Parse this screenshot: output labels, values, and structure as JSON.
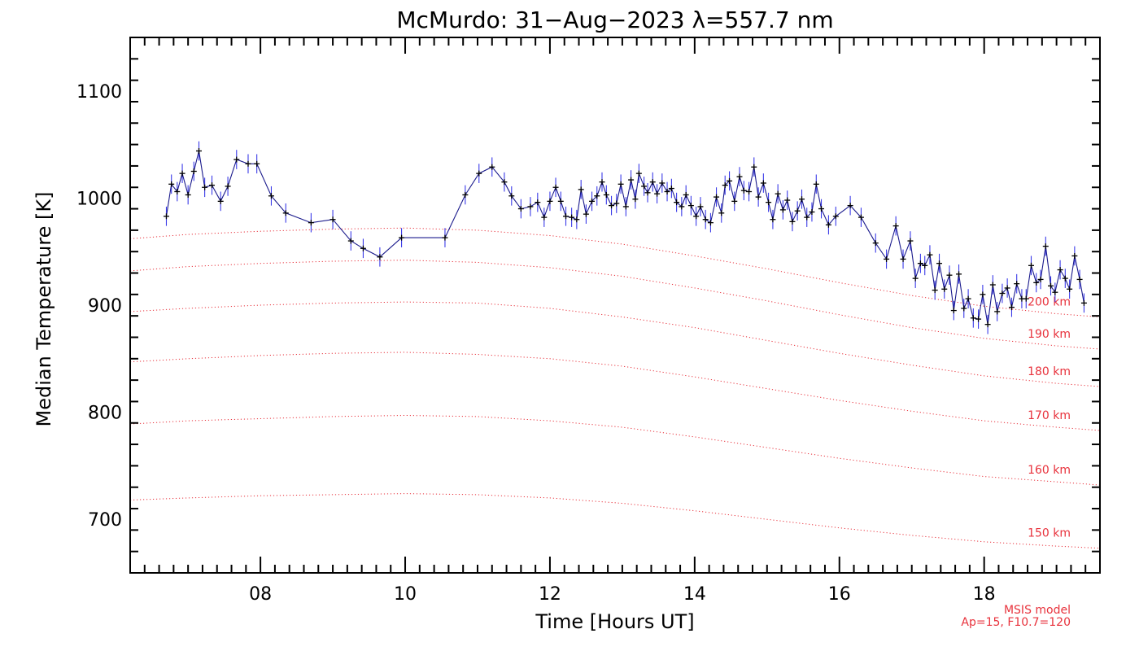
{
  "chart_data": {
    "type": "line",
    "title": "McMurdo: 31−Aug−2023 λ=557.7 nm",
    "xlabel": "Time [Hours UT]",
    "ylabel": "Median Temperature [K]",
    "xlim": [
      6.2,
      19.6
    ],
    "ylim": [
      650,
      1150
    ],
    "x_ticks": [
      8,
      10,
      12,
      14,
      16,
      18
    ],
    "x_tick_labels": [
      "08",
      "10",
      "12",
      "14",
      "16",
      "18"
    ],
    "y_ticks": [
      700,
      800,
      900,
      1000,
      1100
    ],
    "y_tick_labels": [
      "700",
      "800",
      "900",
      "1000",
      "1100"
    ],
    "grid": false,
    "colors": {
      "series": "#1a1a8c",
      "error_bars": "#3a3ae8",
      "markers": "#000000",
      "model": "#e8323c"
    },
    "series": [
      {
        "type": "line_errorbar",
        "points": [
          [
            6.7,
            983,
            9
          ],
          [
            6.77,
            1013,
            9
          ],
          [
            6.85,
            1006,
            9
          ],
          [
            6.92,
            1023,
            9
          ],
          [
            7.0,
            1003,
            9
          ],
          [
            7.08,
            1025,
            9
          ],
          [
            7.15,
            1044,
            9
          ],
          [
            7.23,
            1010,
            9
          ],
          [
            7.33,
            1012,
            9
          ],
          [
            7.45,
            997,
            9
          ],
          [
            7.55,
            1011,
            9
          ],
          [
            7.67,
            1036,
            9
          ],
          [
            7.83,
            1032,
            9
          ],
          [
            7.95,
            1032,
            9
          ],
          [
            8.15,
            1002,
            9
          ],
          [
            8.35,
            986,
            9
          ],
          [
            8.7,
            977,
            9
          ],
          [
            9.0,
            980,
            9
          ],
          [
            9.25,
            960,
            9
          ],
          [
            9.42,
            953,
            9
          ],
          [
            9.65,
            945,
            9
          ],
          [
            9.95,
            963,
            9
          ],
          [
            10.55,
            963,
            9
          ],
          [
            10.83,
            1003,
            9
          ],
          [
            11.02,
            1023,
            9
          ],
          [
            11.2,
            1029,
            9
          ],
          [
            11.37,
            1015,
            9
          ],
          [
            11.47,
            1002,
            9
          ],
          [
            11.6,
            990,
            9
          ],
          [
            11.73,
            992,
            9
          ],
          [
            11.83,
            996,
            9
          ],
          [
            11.92,
            982,
            9
          ],
          [
            12.0,
            997,
            9
          ],
          [
            12.08,
            1010,
            9
          ],
          [
            12.15,
            997,
            9
          ],
          [
            12.22,
            983,
            9
          ],
          [
            12.3,
            982,
            9
          ],
          [
            12.37,
            980,
            9
          ],
          [
            12.43,
            1008,
            9
          ],
          [
            12.5,
            985,
            9
          ],
          [
            12.58,
            997,
            9
          ],
          [
            12.65,
            1002,
            9
          ],
          [
            12.72,
            1015,
            9
          ],
          [
            12.78,
            1003,
            9
          ],
          [
            12.85,
            993,
            9
          ],
          [
            12.92,
            995,
            9
          ],
          [
            12.98,
            1013,
            9
          ],
          [
            13.05,
            992,
            9
          ],
          [
            13.12,
            1017,
            9
          ],
          [
            13.18,
            999,
            9
          ],
          [
            13.23,
            1023,
            9
          ],
          [
            13.3,
            1011,
            9
          ],
          [
            13.35,
            1005,
            9
          ],
          [
            13.42,
            1015,
            9
          ],
          [
            13.48,
            1004,
            9
          ],
          [
            13.55,
            1014,
            9
          ],
          [
            13.62,
            1006,
            9
          ],
          [
            13.68,
            1009,
            9
          ],
          [
            13.75,
            996,
            9
          ],
          [
            13.82,
            992,
            9
          ],
          [
            13.88,
            1003,
            9
          ],
          [
            13.95,
            993,
            9
          ],
          [
            14.02,
            983,
            9
          ],
          [
            14.08,
            992,
            9
          ],
          [
            14.15,
            980,
            9
          ],
          [
            14.22,
            977,
            9
          ],
          [
            14.3,
            1001,
            9
          ],
          [
            14.37,
            986,
            9
          ],
          [
            14.42,
            1012,
            9
          ],
          [
            14.48,
            1016,
            9
          ],
          [
            14.55,
            997,
            9
          ],
          [
            14.62,
            1020,
            9
          ],
          [
            14.68,
            1007,
            9
          ],
          [
            14.75,
            1006,
            9
          ],
          [
            14.82,
            1029,
            9
          ],
          [
            14.88,
            1001,
            9
          ],
          [
            14.95,
            1014,
            9
          ],
          [
            15.02,
            996,
            9
          ],
          [
            15.08,
            980,
            9
          ],
          [
            15.15,
            1004,
            9
          ],
          [
            15.22,
            989,
            9
          ],
          [
            15.28,
            998,
            9
          ],
          [
            15.35,
            978,
            9
          ],
          [
            15.42,
            988,
            9
          ],
          [
            15.48,
            999,
            9
          ],
          [
            15.55,
            982,
            9
          ],
          [
            15.62,
            987,
            9
          ],
          [
            15.68,
            1013,
            9
          ],
          [
            15.75,
            990,
            9
          ],
          [
            15.85,
            975,
            9
          ],
          [
            15.95,
            983,
            9
          ],
          [
            16.15,
            993,
            9
          ],
          [
            16.3,
            982,
            9
          ],
          [
            16.5,
            958,
            9
          ],
          [
            16.65,
            943,
            9
          ],
          [
            16.78,
            974,
            9
          ],
          [
            16.88,
            943,
            9
          ],
          [
            16.98,
            960,
            9
          ],
          [
            17.05,
            925,
            9
          ],
          [
            17.12,
            939,
            9
          ],
          [
            17.18,
            937,
            9
          ],
          [
            17.25,
            947,
            9
          ],
          [
            17.32,
            914,
            9
          ],
          [
            17.38,
            939,
            9
          ],
          [
            17.45,
            915,
            9
          ],
          [
            17.52,
            928,
            9
          ],
          [
            17.58,
            895,
            9
          ],
          [
            17.65,
            929,
            9
          ],
          [
            17.72,
            897,
            9
          ],
          [
            17.78,
            906,
            9
          ],
          [
            17.85,
            888,
            9
          ],
          [
            17.92,
            887,
            9
          ],
          [
            17.98,
            910,
            9
          ],
          [
            18.05,
            882,
            9
          ],
          [
            18.12,
            919,
            9
          ],
          [
            18.18,
            894,
            9
          ],
          [
            18.25,
            911,
            9
          ],
          [
            18.32,
            916,
            9
          ],
          [
            18.38,
            898,
            9
          ],
          [
            18.45,
            920,
            9
          ],
          [
            18.52,
            906,
            9
          ],
          [
            18.58,
            906,
            9
          ],
          [
            18.65,
            937,
            9
          ],
          [
            18.72,
            921,
            9
          ],
          [
            18.78,
            924,
            9
          ],
          [
            18.85,
            955,
            9
          ],
          [
            18.92,
            918,
            9
          ],
          [
            18.98,
            912,
            9
          ],
          [
            19.05,
            933,
            9
          ],
          [
            19.12,
            925,
            9
          ],
          [
            19.18,
            915,
            9
          ],
          [
            19.25,
            946,
            9
          ],
          [
            19.32,
            924,
            9
          ],
          [
            19.38,
            902,
            9
          ]
        ]
      }
    ],
    "model": {
      "name": "MSIS model",
      "params": "Ap=15, F10.7=120",
      "x": [
        6.2,
        7.0,
        8.0,
        9.0,
        10.0,
        11.0,
        12.0,
        13.0,
        14.0,
        15.0,
        16.0,
        17.0,
        18.0,
        19.0,
        19.6
      ],
      "curves": [
        {
          "label": "200 km",
          "y": [
            962,
            966,
            969,
            971,
            972,
            970,
            965,
            957,
            946,
            934,
            921,
            909,
            899,
            892,
            889
          ]
        },
        {
          "label": "190 km",
          "y": [
            932,
            936,
            939,
            941,
            942,
            940,
            935,
            927,
            916,
            904,
            891,
            879,
            869,
            862,
            859
          ]
        },
        {
          "label": "180 km",
          "y": [
            894,
            897,
            900,
            902,
            903,
            902,
            897,
            889,
            879,
            867,
            855,
            844,
            834,
            827,
            824
          ]
        },
        {
          "label": "170 km",
          "y": [
            847,
            850,
            853,
            855,
            856,
            854,
            850,
            843,
            833,
            822,
            811,
            801,
            792,
            786,
            783
          ]
        },
        {
          "label": "160 km",
          "y": [
            789,
            792,
            794,
            796,
            797,
            796,
            792,
            786,
            777,
            767,
            757,
            748,
            740,
            735,
            732
          ]
        },
        {
          "label": "150 km",
          "y": [
            718,
            720,
            722,
            723,
            724,
            723,
            720,
            715,
            708,
            700,
            692,
            685,
            679,
            675,
            673
          ]
        }
      ]
    }
  }
}
